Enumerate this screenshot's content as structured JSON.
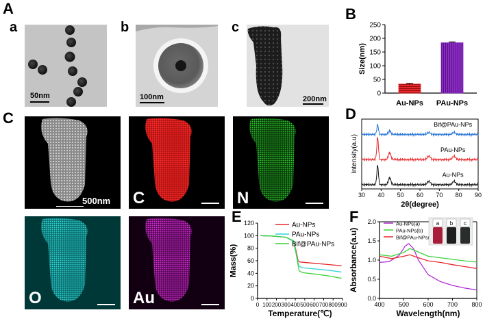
{
  "panels": {
    "A": "A",
    "B": "B",
    "C": "C",
    "D": "D",
    "E": "E",
    "F": "F",
    "a": "a",
    "b": "b",
    "c": "c"
  },
  "tem": {
    "a_scale": "50nm",
    "b_scale": "100nm",
    "c_scale": "200nm"
  },
  "mapping": {
    "scale": "500nm",
    "scale_small": "500 nm",
    "C": "C",
    "N": "N",
    "O": "O",
    "Au": "Au",
    "colors": {
      "gray": "#bdbdbd",
      "C": "#e02020",
      "N": "#26b826",
      "O": "#25c6c6",
      "Au": "#c628c6"
    }
  },
  "chart_data": [
    {
      "id": "B",
      "type": "bar",
      "categories": [
        "Au-NPs",
        "PAu-NPs"
      ],
      "values": [
        33,
        184
      ],
      "errors": [
        3,
        3
      ],
      "ylabel": "Size(nm)",
      "ylim": [
        0,
        250
      ],
      "yticks": [
        "0",
        "50",
        "100",
        "150",
        "200",
        "250"
      ],
      "colors": [
        "#e8262b",
        "#8a2cc0"
      ],
      "patterns": [
        "horizontal-lines",
        "vertical-lines"
      ]
    },
    {
      "id": "D",
      "type": "line",
      "xlabel": "2θ(degree)",
      "ylabel": "Intensity(a.u)",
      "xlim": [
        30,
        90
      ],
      "xticks": [
        "30",
        "40",
        "50",
        "60",
        "70",
        "80",
        "90"
      ],
      "peaks": [
        38.2,
        44.4,
        64.6,
        77.6
      ],
      "series": [
        {
          "name": "Bif@PAu-NPs",
          "color": "#1f6fd6",
          "baseline": 0.78,
          "peak_heights": [
            0.14,
            0.05,
            0.03,
            0.03
          ]
        },
        {
          "name": "PAu-NPs",
          "color": "#e8262b",
          "baseline": 0.42,
          "peak_heights": [
            0.32,
            0.1,
            0.05,
            0.05
          ]
        },
        {
          "name": "Au-NPs",
          "color": "#111111",
          "baseline": 0.06,
          "peak_heights": [
            0.28,
            0.1,
            0.05,
            0.05
          ]
        }
      ]
    },
    {
      "id": "E",
      "type": "line",
      "xlabel": "Temperature(℃)",
      "ylabel": "Mass(%)",
      "xlim": [
        0,
        900
      ],
      "ylim": [
        0,
        120
      ],
      "xticks": [
        "0",
        "100",
        "200",
        "300",
        "400",
        "500",
        "600",
        "700",
        "800",
        "900"
      ],
      "yticks": [
        "0",
        "20",
        "40",
        "60",
        "80",
        "100",
        "120"
      ],
      "series": [
        {
          "name": "Au-NPs",
          "color": "#e8262b",
          "points": [
            [
              30,
              100
            ],
            [
              150,
              99.5
            ],
            [
              300,
              97.5
            ],
            [
              380,
              92
            ],
            [
              410,
              75
            ],
            [
              430,
              60
            ],
            [
              450,
              58
            ],
            [
              600,
              56
            ],
            [
              750,
              54
            ],
            [
              890,
              52
            ]
          ]
        },
        {
          "name": "PAu-NPs",
          "color": "#2bd3e0",
          "points": [
            [
              30,
              100
            ],
            [
              150,
              99.5
            ],
            [
              300,
              97.5
            ],
            [
              380,
              92
            ],
            [
              410,
              72
            ],
            [
              435,
              52
            ],
            [
              470,
              49
            ],
            [
              600,
              47
            ],
            [
              750,
              45
            ],
            [
              890,
              42
            ]
          ]
        },
        {
          "name": "Bif@PAu-NPs",
          "color": "#3ad23a",
          "points": [
            [
              30,
              100
            ],
            [
              150,
              99.5
            ],
            [
              300,
              97.5
            ],
            [
              380,
              91
            ],
            [
              410,
              70
            ],
            [
              440,
              44
            ],
            [
              480,
              41
            ],
            [
              600,
              39
            ],
            [
              750,
              36
            ],
            [
              890,
              32
            ]
          ]
        }
      ]
    },
    {
      "id": "F",
      "type": "line",
      "xlabel": "Wavelength(nm)",
      "ylabel": "Absorbance(a.u)",
      "xlim": [
        400,
        800
      ],
      "ylim": [
        0,
        2
      ],
      "xticks": [
        "400",
        "500",
        "600",
        "700",
        "800"
      ],
      "yticks": [
        "0.0",
        "0.5",
        "1.0",
        "1.5",
        "2.0"
      ],
      "series": [
        {
          "name": "Au-NPs(a)",
          "color": "#b12cd6",
          "points": [
            [
              400,
              0.94
            ],
            [
              440,
              0.96
            ],
            [
              480,
              1.12
            ],
            [
              505,
              1.36
            ],
            [
              520,
              1.43
            ],
            [
              540,
              1.3
            ],
            [
              560,
              1.0
            ],
            [
              600,
              0.62
            ],
            [
              650,
              0.44
            ],
            [
              700,
              0.34
            ],
            [
              750,
              0.27
            ],
            [
              800,
              0.22
            ]
          ]
        },
        {
          "name": "PAu-NPs(b)",
          "color": "#3ad23a",
          "points": [
            [
              400,
              1.14
            ],
            [
              450,
              1.1
            ],
            [
              500,
              1.2
            ],
            [
              525,
              1.3
            ],
            [
              545,
              1.25
            ],
            [
              600,
              1.1
            ],
            [
              650,
              1.06
            ],
            [
              700,
              1.02
            ],
            [
              750,
              0.98
            ],
            [
              800,
              0.95
            ]
          ]
        },
        {
          "name": "Bif@PAu-NPs(c)",
          "color": "#e8262b",
          "points": [
            [
              400,
              1.1
            ],
            [
              450,
              1.04
            ],
            [
              500,
              1.1
            ],
            [
              525,
              1.14
            ],
            [
              550,
              1.08
            ],
            [
              600,
              0.98
            ],
            [
              650,
              0.94
            ],
            [
              700,
              0.88
            ],
            [
              750,
              0.83
            ],
            [
              800,
              0.78
            ]
          ]
        }
      ],
      "inset_labels": [
        "a",
        "b",
        "c"
      ],
      "inset_colors": [
        "#a81c3a",
        "#1e1e1e",
        "#2a2e2a"
      ]
    }
  ]
}
